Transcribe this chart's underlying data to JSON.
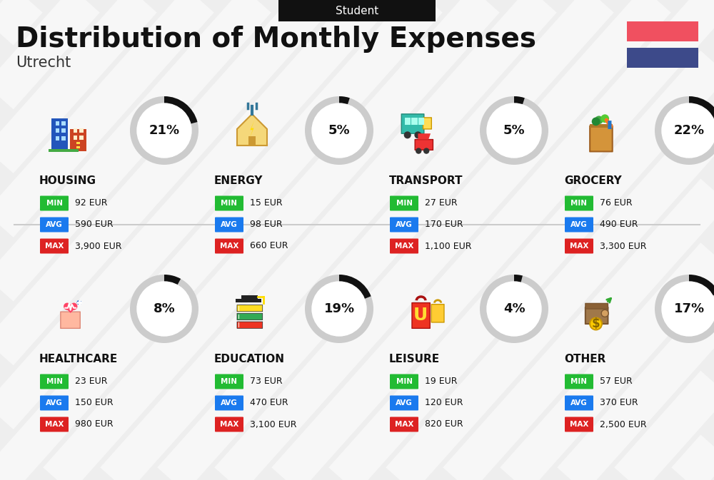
{
  "title": "Distribution of Monthly Expenses",
  "subtitle": "Utrecht",
  "header_label": "Student",
  "background_color": "#eeeeee",
  "flag_red": "#f05060",
  "flag_blue": "#3d4a8a",
  "categories": [
    {
      "name": "HOUSING",
      "pct": 21,
      "min": "92 EUR",
      "avg": "590 EUR",
      "max": "3,900 EUR",
      "row": 0,
      "col": 0
    },
    {
      "name": "ENERGY",
      "pct": 5,
      "min": "15 EUR",
      "avg": "98 EUR",
      "max": "660 EUR",
      "row": 0,
      "col": 1
    },
    {
      "name": "TRANSPORT",
      "pct": 5,
      "min": "27 EUR",
      "avg": "170 EUR",
      "max": "1,100 EUR",
      "row": 0,
      "col": 2
    },
    {
      "name": "GROCERY",
      "pct": 22,
      "min": "76 EUR",
      "avg": "490 EUR",
      "max": "3,300 EUR",
      "row": 0,
      "col": 3
    },
    {
      "name": "HEALTHCARE",
      "pct": 8,
      "min": "23 EUR",
      "avg": "150 EUR",
      "max": "980 EUR",
      "row": 1,
      "col": 0
    },
    {
      "name": "EDUCATION",
      "pct": 19,
      "min": "73 EUR",
      "avg": "470 EUR",
      "max": "3,100 EUR",
      "row": 1,
      "col": 1
    },
    {
      "name": "LEISURE",
      "pct": 4,
      "min": "19 EUR",
      "avg": "120 EUR",
      "max": "820 EUR",
      "row": 1,
      "col": 2
    },
    {
      "name": "OTHER",
      "pct": 17,
      "min": "57 EUR",
      "avg": "370 EUR",
      "max": "2,500 EUR",
      "row": 1,
      "col": 3
    }
  ],
  "min_color": "#22bb33",
  "avg_color": "#1a7aee",
  "max_color": "#dd2222",
  "ring_filled_color": "#111111",
  "ring_empty_color": "#cccccc",
  "stripe_color": "#ffffff",
  "divider_color": "#cccccc"
}
